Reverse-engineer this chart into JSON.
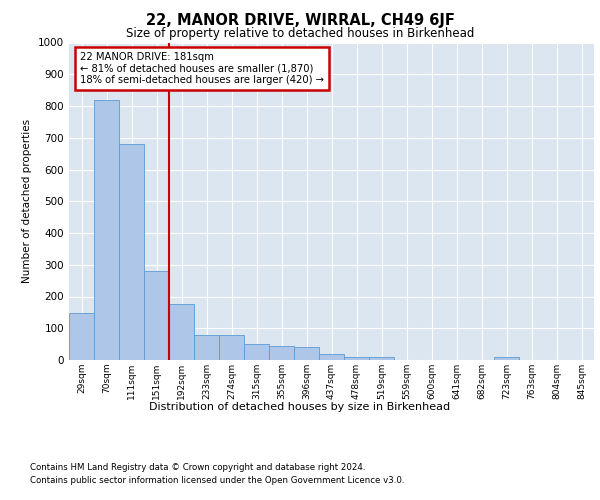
{
  "title": "22, MANOR DRIVE, WIRRAL, CH49 6JF",
  "subtitle": "Size of property relative to detached houses in Birkenhead",
  "xlabel": "Distribution of detached houses by size in Birkenhead",
  "ylabel": "Number of detached properties",
  "categories": [
    "29sqm",
    "70sqm",
    "111sqm",
    "151sqm",
    "192sqm",
    "233sqm",
    "274sqm",
    "315sqm",
    "355sqm",
    "396sqm",
    "437sqm",
    "478sqm",
    "519sqm",
    "559sqm",
    "600sqm",
    "641sqm",
    "682sqm",
    "723sqm",
    "763sqm",
    "804sqm",
    "845sqm"
  ],
  "values": [
    148,
    820,
    680,
    280,
    175,
    78,
    78,
    50,
    45,
    40,
    20,
    10,
    10,
    0,
    0,
    0,
    0,
    8,
    0,
    0,
    0
  ],
  "bar_color": "#aec6e8",
  "bar_edge_color": "#5b9bd5",
  "annotation_text": "22 MANOR DRIVE: 181sqm\n← 81% of detached houses are smaller (1,870)\n18% of semi-detached houses are larger (420) →",
  "annotation_box_color": "#ffffff",
  "annotation_box_edge": "#cc0000",
  "line_color": "#cc0000",
  "ylim": [
    0,
    1000
  ],
  "yticks": [
    0,
    100,
    200,
    300,
    400,
    500,
    600,
    700,
    800,
    900,
    1000
  ],
  "background_color": "#dce6f0",
  "footnote1": "Contains HM Land Registry data © Crown copyright and database right 2024.",
  "footnote2": "Contains public sector information licensed under the Open Government Licence v3.0."
}
